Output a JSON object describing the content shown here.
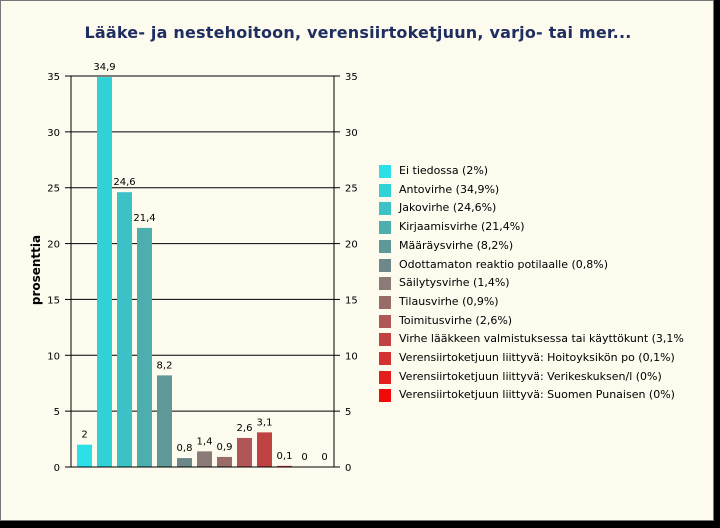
{
  "chart_data": {
    "type": "bar",
    "title": "Lääke- ja nestehoitoon, verensiirtoketjuun, varjo- tai mer...",
    "ylabel": "prosenttia",
    "xlabel": "",
    "ylim": [
      0,
      35
    ],
    "yticks": [
      0,
      5,
      10,
      15,
      20,
      25,
      30,
      35
    ],
    "grid": true,
    "legend_position": "right",
    "categories": [
      "Ei tiedossa (2%)",
      "Antovirhe (34,9%)",
      "Jakovirhe (24,6%)",
      "Kirjaamisvirhe (21,4%)",
      "Määräysvirhe (8,2%)",
      "Odottamaton reaktio potilaalle (0,8%)",
      "Säilytysvirhe (1,4%)",
      "Tilausvirhe (0,9%)",
      "Toimitusvirhe (2,6%)",
      "Virhe lääkkeen valmistuksessa tai käyttökunt (3,1%",
      "Verensiirtoketjuun liittyvä: Hoitoyksikön po (0,1%)",
      "Verensiirtoketjuun liittyvä: Verikeskuksen/l (0%)",
      "Verensiirtoketjuun liittyvä: Suomen Punaisen (0%)"
    ],
    "values": [
      2,
      34.9,
      24.6,
      21.4,
      8.2,
      0.8,
      1.4,
      0.9,
      2.6,
      3.1,
      0.1,
      0,
      0
    ],
    "value_labels": [
      "2",
      "34,9",
      "24,6",
      "21,4",
      "8,2",
      "0,8",
      "1,4",
      "0,9",
      "2,6",
      "3,1",
      "0,1",
      "0",
      "0"
    ],
    "colors": [
      "#2ae0e6",
      "#30d2d6",
      "#3cc2c6",
      "#4eadad",
      "#5e9898",
      "#6c8888",
      "#8a7a78",
      "#9a6c68",
      "#b05656",
      "#c04242",
      "#d43232",
      "#e41e1a",
      "#f00a0a"
    ]
  }
}
